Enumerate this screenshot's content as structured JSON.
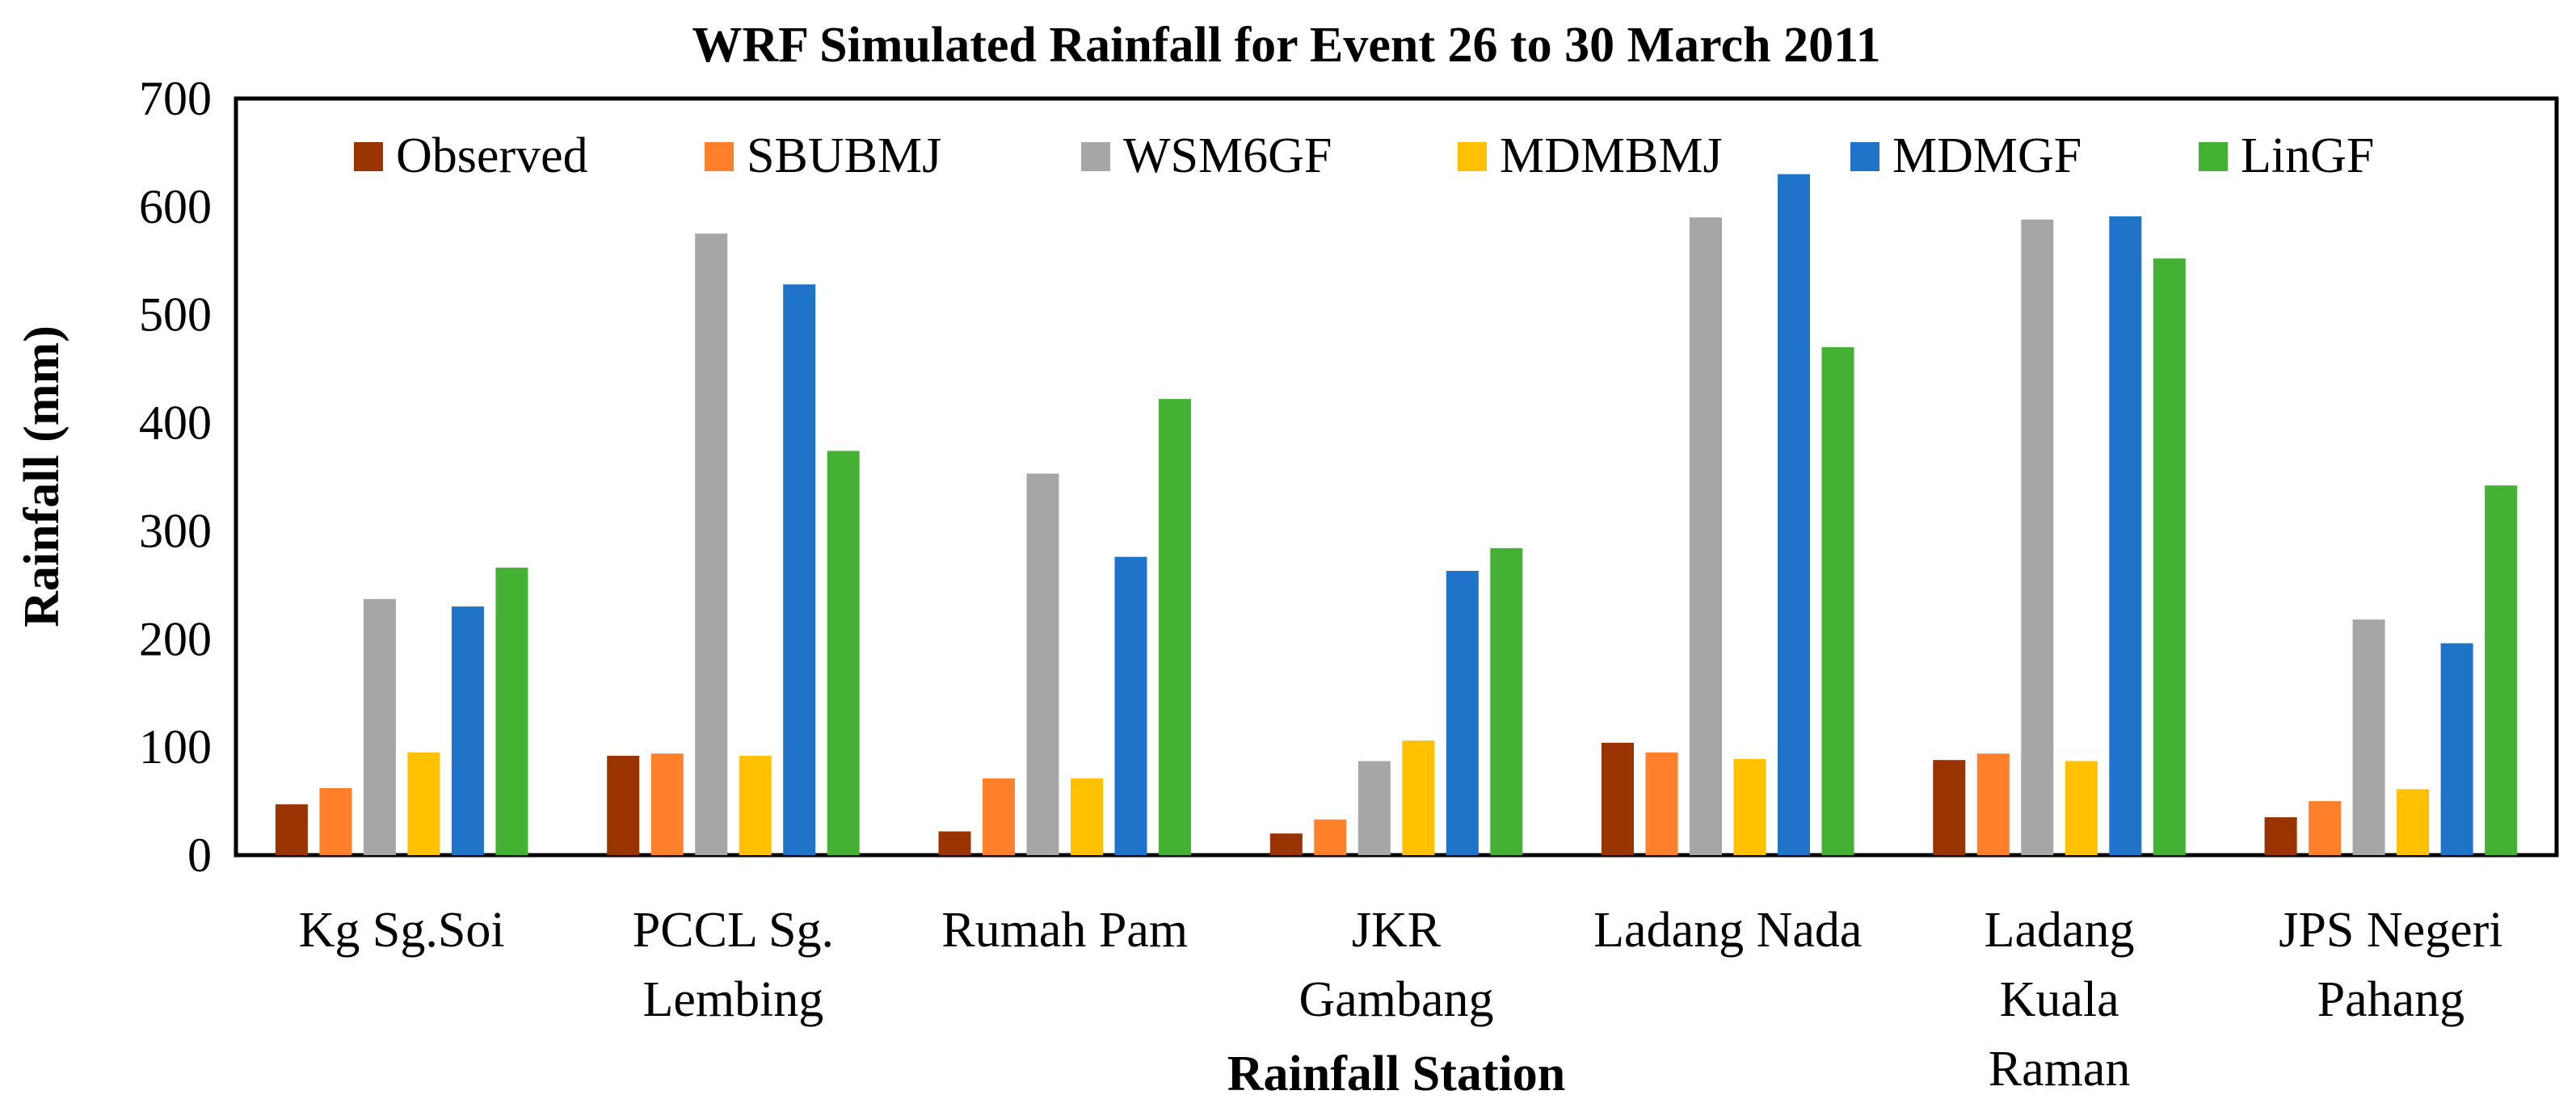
{
  "chart_data": {
    "type": "bar",
    "title": "WRF Simulated Rainfall for Event 26 to 30 March 2011",
    "xlabel": "Rainfall Station",
    "ylabel": "Rainfall (mm)",
    "ylim": [
      0,
      700
    ],
    "yticks": [
      "0",
      "100",
      "200",
      "300",
      "400",
      "500",
      "600",
      "700"
    ],
    "grid": false,
    "legend_position": "top",
    "categories": [
      [
        "Kg Sg.Soi"
      ],
      [
        "PCCL Sg.",
        "Lembing"
      ],
      [
        "Rumah Pam"
      ],
      [
        "JKR",
        "Gambang"
      ],
      [
        "Ladang Nada"
      ],
      [
        "Ladang",
        "Kuala",
        "Raman"
      ],
      [
        "JPS Negeri",
        "Pahang"
      ]
    ],
    "series": [
      {
        "name": "Observed",
        "color": "#993300",
        "values": [
          47,
          92,
          22,
          20,
          104,
          88,
          35
        ]
      },
      {
        "name": "SBUBMJ",
        "color": "#FF7F2A",
        "values": [
          62,
          94,
          71,
          33,
          95,
          94,
          50
        ]
      },
      {
        "name": "WSM6GF",
        "color": "#A6A6A6",
        "values": [
          237,
          575,
          353,
          87,
          590,
          588,
          218
        ]
      },
      {
        "name": "MDMBMJ",
        "color": "#FFC000",
        "values": [
          95,
          92,
          71,
          106,
          89,
          87,
          61
        ]
      },
      {
        "name": "MDMGF",
        "color": "#1F73C8",
        "values": [
          230,
          528,
          276,
          263,
          630,
          591,
          196
        ]
      },
      {
        "name": "LinGF",
        "color": "#44B034",
        "values": [
          266,
          374,
          422,
          284,
          470,
          552,
          342
        ]
      }
    ]
  }
}
